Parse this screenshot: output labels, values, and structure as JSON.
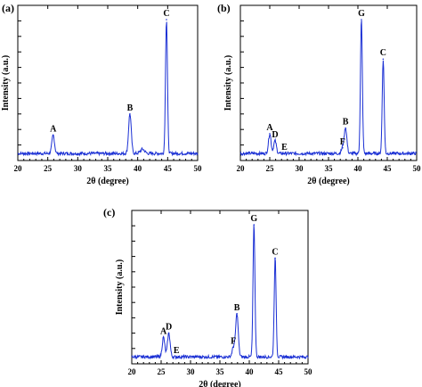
{
  "figure": {
    "xlabel": "2θ (degree)",
    "ylabel": "Intensity (a.u.)"
  },
  "chart_data": [
    {
      "type": "line",
      "panel_label": "(a)",
      "xlabel": "2θ (degree)",
      "ylabel": "Intensity (a.u.)",
      "xlim": [
        20,
        50
      ],
      "ylim": [
        0,
        100
      ],
      "xticks": [
        20,
        25,
        30,
        35,
        40,
        45,
        50
      ],
      "grid": false,
      "peaks": [
        {
          "label": "A",
          "x": 25.9,
          "y": 18
        },
        {
          "label": "B",
          "x": 38.7,
          "y": 33
        },
        {
          "label": "C",
          "x": 44.8,
          "y": 100
        }
      ],
      "minor_bumps": [
        {
          "x": 40.8,
          "y": 8
        }
      ],
      "baseline": 5
    },
    {
      "type": "line",
      "panel_label": "(b)",
      "xlabel": "2θ (degree)",
      "ylabel": "Intensity (a.u.)",
      "xlim": [
        20,
        50
      ],
      "ylim": [
        0,
        100
      ],
      "xticks": [
        20,
        25,
        30,
        35,
        40,
        45,
        50
      ],
      "grid": false,
      "peaks": [
        {
          "label": "A",
          "x": 25.0,
          "y": 19
        },
        {
          "label": "D",
          "x": 25.9,
          "y": 14
        },
        {
          "label": "E",
          "x": 27.5,
          "y": 5
        },
        {
          "label": "F",
          "x": 37.4,
          "y": 9
        },
        {
          "label": "B",
          "x": 37.9,
          "y": 23
        },
        {
          "label": "G",
          "x": 40.6,
          "y": 100
        },
        {
          "label": "C",
          "x": 44.3,
          "y": 72
        }
      ],
      "minor_bumps": [],
      "baseline": 5
    },
    {
      "type": "line",
      "panel_label": "(c)",
      "xlabel": "2θ (degree)",
      "ylabel": "Intensity (a.u.)",
      "xlim": [
        20,
        50
      ],
      "ylim": [
        0,
        100
      ],
      "xticks": [
        20,
        25,
        30,
        35,
        40,
        45,
        50
      ],
      "grid": false,
      "peaks": [
        {
          "label": "A",
          "x": 25.4,
          "y": 19
        },
        {
          "label": "D",
          "x": 26.3,
          "y": 22
        },
        {
          "label": "E",
          "x": 27.6,
          "y": 5
        },
        {
          "label": "F",
          "x": 37.3,
          "y": 12
        },
        {
          "label": "B",
          "x": 37.9,
          "y": 36
        },
        {
          "label": "G",
          "x": 40.8,
          "y": 100
        },
        {
          "label": "C",
          "x": 44.4,
          "y": 76
        }
      ],
      "minor_bumps": [],
      "baseline": 5
    }
  ]
}
